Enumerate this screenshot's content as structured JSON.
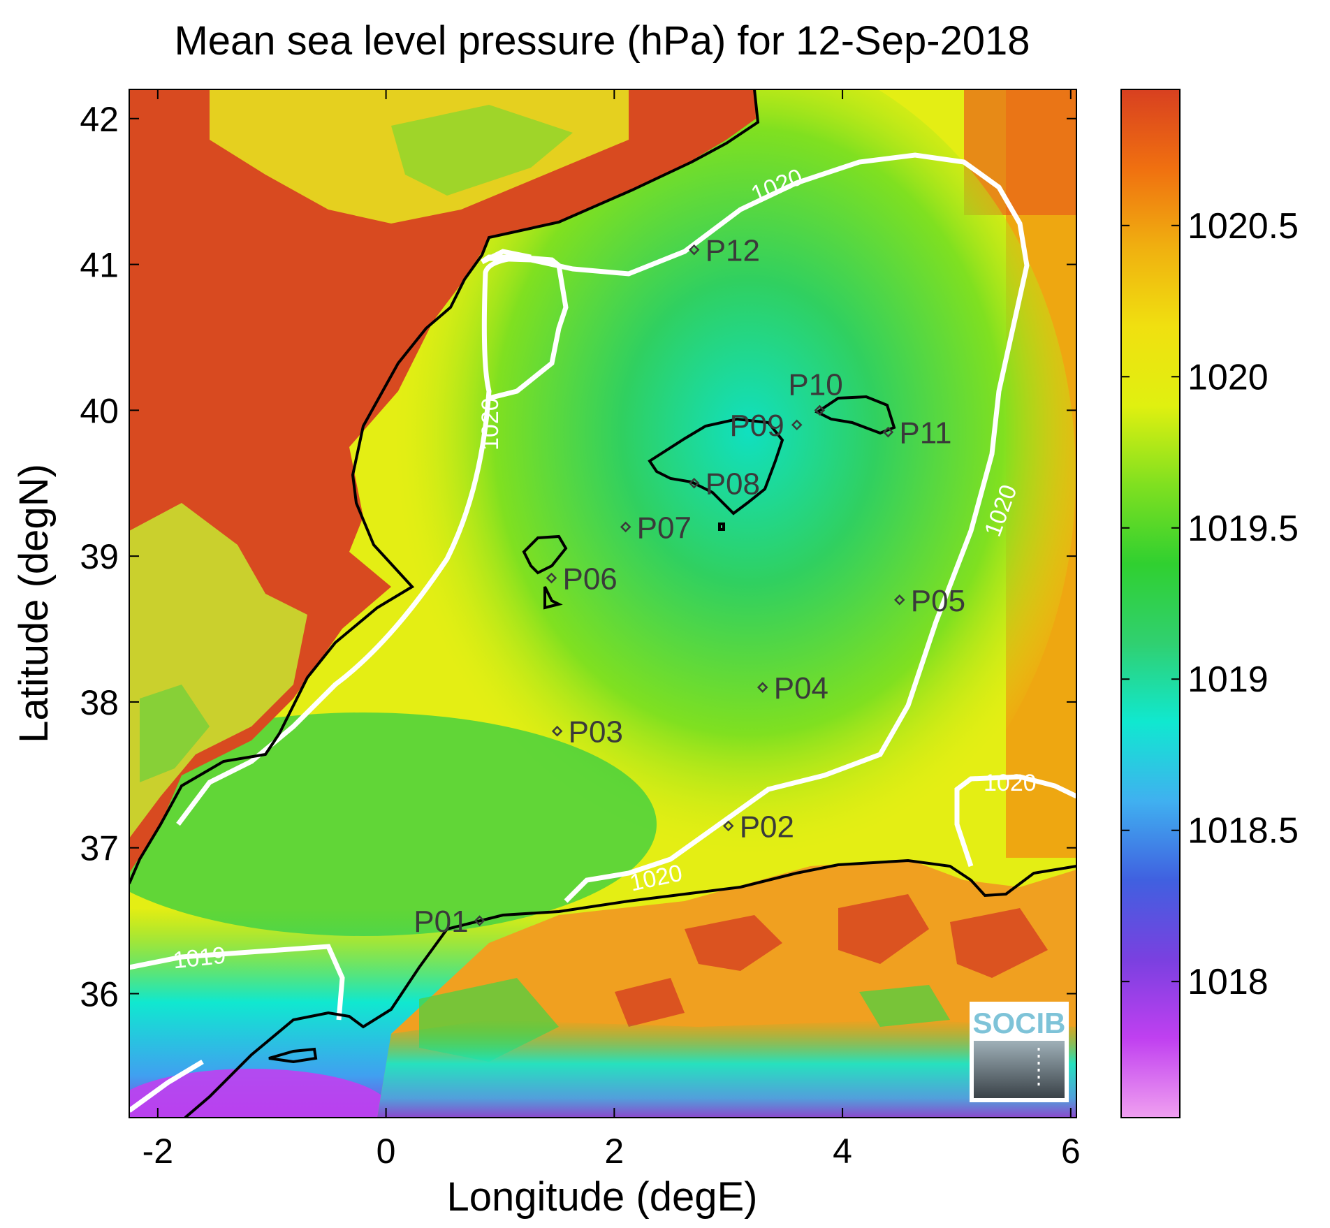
{
  "title": "Mean sea level pressure (hPa) for 12-Sep-2018",
  "xlabel": "Longitude (degE)",
  "ylabel": "Latitude (degN)",
  "x_ticks": [
    "-2",
    "0",
    "2",
    "4",
    "6"
  ],
  "y_ticks": [
    "42",
    "41",
    "40",
    "39",
    "38",
    "37",
    "36"
  ],
  "colorbar": {
    "ticks": [
      "1020.5",
      "1020",
      "1019.5",
      "1019",
      "1018.5",
      "1018"
    ],
    "range": [
      1017.55,
      1020.95
    ],
    "colors": [
      "#f0a0f0",
      "#c040f0",
      "#7a40e0",
      "#4060e0",
      "#40b0f0",
      "#10e8d0",
      "#30d070",
      "#30d030",
      "#80e020",
      "#e0f010",
      "#f0e010",
      "#f0b010",
      "#f07010",
      "#d84020"
    ]
  },
  "contour_labels": [
    "1020",
    "1020",
    "1020",
    "1020",
    "1020",
    "1019"
  ],
  "points": [
    {
      "name": "P01",
      "lon": 0.82,
      "lat": 36.5
    },
    {
      "name": "P02",
      "lon": 3.0,
      "lat": 37.15
    },
    {
      "name": "P03",
      "lon": 1.5,
      "lat": 37.8
    },
    {
      "name": "P04",
      "lon": 3.3,
      "lat": 38.1
    },
    {
      "name": "P05",
      "lon": 4.5,
      "lat": 38.7
    },
    {
      "name": "P06",
      "lon": 1.45,
      "lat": 38.85
    },
    {
      "name": "P07",
      "lon": 2.1,
      "lat": 39.2
    },
    {
      "name": "P08",
      "lon": 2.7,
      "lat": 39.5
    },
    {
      "name": "P09",
      "lon": 3.6,
      "lat": 39.9
    },
    {
      "name": "P10",
      "lon": 3.8,
      "lat": 40.0
    },
    {
      "name": "P11",
      "lon": 4.4,
      "lat": 39.85
    },
    {
      "name": "P12",
      "lon": 2.7,
      "lat": 41.1
    }
  ],
  "logo": "SOCIB"
}
